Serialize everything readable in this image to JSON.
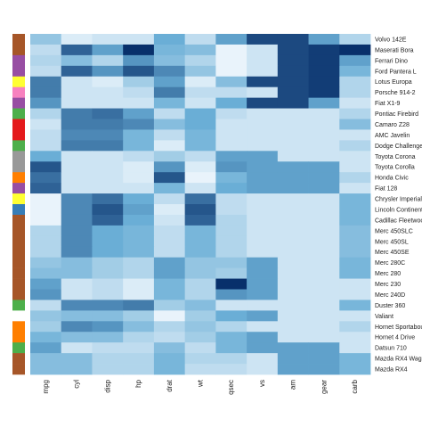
{
  "chart_data": {
    "type": "heatmap",
    "color_scale": {
      "low": "#f7fbff",
      "mid": "#6aaed6",
      "high": "#08306b"
    },
    "columns": [
      "mpg",
      "cyl",
      "disp",
      "hp",
      "drat",
      "wt",
      "qsec",
      "vs",
      "am",
      "gear",
      "carb"
    ],
    "rows": [
      "Volvo 142E",
      "Maserati Bora",
      "Ferrari Dino",
      "Ford Pantera L",
      "Lotus Europa",
      "Porsche 914-2",
      "Fiat X1-9",
      "Pontiac Firebird",
      "Camaro Z28",
      "AMC Javelin",
      "Dodge Challenger",
      "Toyota Corona",
      "Toyota Corolla",
      "Honda Civic",
      "Fiat 128",
      "Chrysler Imperial",
      "Lincoln Continental",
      "Cadillac Fleetwood",
      "Merc 450SLC",
      "Merc 450SL",
      "Merc 450SE",
      "Merc 280C",
      "Merc 280",
      "Merc 230",
      "Merc 240D",
      "Duster 360",
      "Valiant",
      "Hornet Sportabout",
      "Hornet 4 Drive",
      "Datsun 710",
      "Mazda RX4 Wag",
      "Mazda RX4"
    ],
    "row_group_colors": [
      "#a65628",
      "#a65628",
      "#984ea3",
      "#984ea3",
      "#ffff33",
      "#f781bf",
      "#984ea3",
      "#4daf4a",
      "#e41a1c",
      "#e41a1c",
      "#4daf4a",
      "#999999",
      "#999999",
      "#ff7f00",
      "#984ea3",
      "#ffff33",
      "#377eb8",
      "#a65628",
      "#a65628",
      "#a65628",
      "#a65628",
      "#a65628",
      "#a65628",
      "#a65628",
      "#a65628",
      "#4daf4a",
      "#ffffff",
      "#ff7f00",
      "#ff7f00",
      "#4daf4a",
      "#a65628",
      "#a65628"
    ],
    "values": [
      [
        0.35,
        0.1,
        0.15,
        0.15,
        0.5,
        0.2,
        0.55,
        0.9,
        0.9,
        0.55,
        0.25
      ],
      [
        0.2,
        0.8,
        0.55,
        1.0,
        0.45,
        0.4,
        0.05,
        0.15,
        0.9,
        0.95,
        1.0
      ],
      [
        0.25,
        0.4,
        0.25,
        0.6,
        0.4,
        0.25,
        0.05,
        0.15,
        0.9,
        0.95,
        0.55
      ],
      [
        0.2,
        0.8,
        0.6,
        0.85,
        0.65,
        0.35,
        0.05,
        0.15,
        0.9,
        0.95,
        0.45
      ],
      [
        0.7,
        0.15,
        0.1,
        0.3,
        0.55,
        0.1,
        0.4,
        0.9,
        0.9,
        0.95,
        0.25
      ],
      [
        0.7,
        0.15,
        0.15,
        0.2,
        0.7,
        0.2,
        0.2,
        0.15,
        0.9,
        0.95,
        0.25
      ],
      [
        0.6,
        0.15,
        0.15,
        0.15,
        0.45,
        0.15,
        0.5,
        0.9,
        0.9,
        0.55,
        0.15
      ],
      [
        0.25,
        0.7,
        0.75,
        0.55,
        0.2,
        0.5,
        0.2,
        0.15,
        0.15,
        0.15,
        0.25
      ],
      [
        0.15,
        0.7,
        0.7,
        0.65,
        0.4,
        0.5,
        0.15,
        0.15,
        0.15,
        0.15,
        0.4
      ],
      [
        0.2,
        0.65,
        0.65,
        0.45,
        0.2,
        0.45,
        0.15,
        0.15,
        0.15,
        0.15,
        0.15
      ],
      [
        0.2,
        0.7,
        0.7,
        0.45,
        0.1,
        0.45,
        0.15,
        0.15,
        0.15,
        0.15,
        0.25
      ],
      [
        0.5,
        0.15,
        0.15,
        0.2,
        0.3,
        0.2,
        0.55,
        0.55,
        0.15,
        0.15,
        0.15
      ],
      [
        0.85,
        0.15,
        0.15,
        0.1,
        0.6,
        0.1,
        0.6,
        0.55,
        0.55,
        0.55,
        0.15
      ],
      [
        0.75,
        0.15,
        0.15,
        0.1,
        0.85,
        0.05,
        0.45,
        0.55,
        0.55,
        0.55,
        0.25
      ],
      [
        0.8,
        0.15,
        0.15,
        0.15,
        0.45,
        0.15,
        0.5,
        0.55,
        0.55,
        0.55,
        0.15
      ],
      [
        0.05,
        0.65,
        0.75,
        0.5,
        0.2,
        0.75,
        0.2,
        0.15,
        0.15,
        0.15,
        0.45
      ],
      [
        0.05,
        0.65,
        0.85,
        0.55,
        0.1,
        0.85,
        0.2,
        0.15,
        0.15,
        0.15,
        0.45
      ],
      [
        0.05,
        0.65,
        0.8,
        0.5,
        0.15,
        0.8,
        0.25,
        0.15,
        0.15,
        0.15,
        0.45
      ],
      [
        0.25,
        0.65,
        0.5,
        0.45,
        0.2,
        0.45,
        0.25,
        0.15,
        0.15,
        0.15,
        0.4
      ],
      [
        0.25,
        0.65,
        0.5,
        0.45,
        0.2,
        0.45,
        0.25,
        0.15,
        0.15,
        0.15,
        0.4
      ],
      [
        0.25,
        0.65,
        0.5,
        0.45,
        0.2,
        0.45,
        0.25,
        0.15,
        0.15,
        0.15,
        0.4
      ],
      [
        0.35,
        0.4,
        0.3,
        0.25,
        0.55,
        0.35,
        0.35,
        0.55,
        0.15,
        0.15,
        0.45
      ],
      [
        0.4,
        0.4,
        0.3,
        0.25,
        0.55,
        0.35,
        0.3,
        0.55,
        0.15,
        0.15,
        0.45
      ],
      [
        0.55,
        0.15,
        0.2,
        0.1,
        0.45,
        0.25,
        1.0,
        0.55,
        0.15,
        0.15,
        0.15
      ],
      [
        0.6,
        0.15,
        0.2,
        0.1,
        0.45,
        0.25,
        0.6,
        0.55,
        0.15,
        0.15,
        0.15
      ],
      [
        0.2,
        0.65,
        0.65,
        0.7,
        0.3,
        0.4,
        0.15,
        0.15,
        0.15,
        0.15,
        0.45
      ],
      [
        0.35,
        0.4,
        0.4,
        0.3,
        0.05,
        0.3,
        0.5,
        0.55,
        0.15,
        0.15,
        0.15
      ],
      [
        0.3,
        0.65,
        0.6,
        0.4,
        0.25,
        0.35,
        0.25,
        0.15,
        0.15,
        0.15,
        0.25
      ],
      [
        0.45,
        0.4,
        0.4,
        0.25,
        0.2,
        0.3,
        0.45,
        0.55,
        0.15,
        0.15,
        0.15
      ],
      [
        0.55,
        0.15,
        0.2,
        0.2,
        0.4,
        0.2,
        0.45,
        0.55,
        0.55,
        0.55,
        0.15
      ],
      [
        0.4,
        0.4,
        0.25,
        0.25,
        0.45,
        0.25,
        0.25,
        0.15,
        0.55,
        0.55,
        0.45
      ],
      [
        0.4,
        0.4,
        0.25,
        0.25,
        0.45,
        0.2,
        0.2,
        0.15,
        0.55,
        0.55,
        0.45
      ]
    ]
  }
}
